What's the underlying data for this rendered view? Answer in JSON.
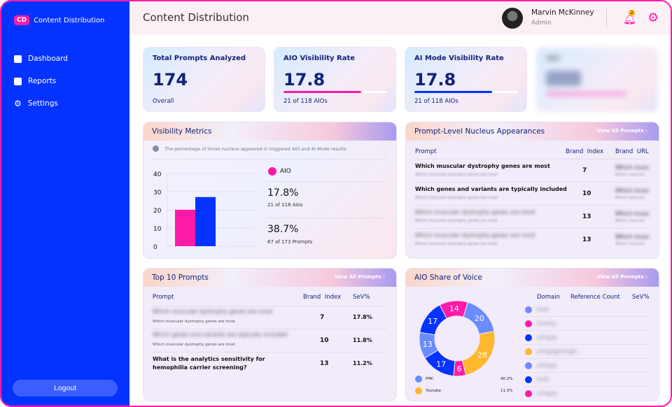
{
  "sidebar": {
    "logo_badge": "CD",
    "logo_text": "Content Distribution",
    "items": [
      {
        "label": "Dashboard",
        "icon": "dashboard-icon"
      },
      {
        "label": "Reports",
        "icon": "report-icon"
      },
      {
        "label": "Settings",
        "icon": "gear-icon"
      }
    ],
    "logout": "Logout"
  },
  "header": {
    "title": "Content Distribution",
    "user_name": "Marvin McKinney",
    "user_role": "Admin",
    "notification_count": "2"
  },
  "colors": {
    "brand_blue": "#0433ff",
    "brand_pink": "#ff1aa8",
    "yellow": "#ffb82e",
    "light_blue": "#6b8cff"
  },
  "stats": [
    {
      "title": "Total Prompts Analyzed",
      "value": "174",
      "sub": "Overall"
    },
    {
      "title": "AIO Visibility Rate",
      "value": "17.8",
      "sub": "21 of 118 AIOs",
      "progress": 0.75
    },
    {
      "title": "AI Mode Visibility Rate",
      "value": "17.8",
      "sub": "21 of 118 AIOs",
      "progress": 0.75
    }
  ],
  "visibility": {
    "title": "Visibility Metrics",
    "note": "The percentage of times nucleus appeared in triggered AIO and AI Mode results",
    "legend": "AIO",
    "m1_value": "17.8%",
    "m1_sub": "21 of 118 Aios",
    "m2_value": "38.7%",
    "m2_sub": "67 of 173 Prompts"
  },
  "chart_data": {
    "type": "bar",
    "yticks": [
      "0",
      "10",
      "20",
      "30",
      "40"
    ],
    "ylim": [
      0,
      40
    ],
    "values": [
      20,
      27
    ],
    "colors": [
      "#ff1aa8",
      "#0433ff"
    ]
  },
  "nucleus": {
    "title": "Prompt-Level Nucleus Appearances",
    "view_all": "View All Prompts",
    "headers": [
      "Prompt",
      "Brand  Index",
      "Brand  URL"
    ],
    "rows": [
      {
        "prompt": "Which muscular dystrophy genes are most",
        "sub": "Which muscular dystrophy genes are most",
        "index": "7",
        "url": "Which musc",
        "url_sub": "Which musculo"
      },
      {
        "prompt": "Which genes and variants are typically included",
        "sub": "Which muscular dystrophy genes are most",
        "index": "10",
        "url": "Which musc",
        "url_sub": "Which musculo"
      },
      {
        "prompt": "Which muscular dystrophy genes are most",
        "sub": "Which muscular dystrophy genes are most",
        "index": "13",
        "url": "Which musc",
        "url_sub": "Which musculo"
      },
      {
        "prompt": "Which muscular dystrophy genes are most",
        "sub": "Which muscular dystrophy genes are most",
        "index": "13",
        "url": "Which musc",
        "url_sub": "Which musculo"
      }
    ]
  },
  "top10": {
    "title": "Top 10 Prompts",
    "view_all": "View All Prompts",
    "headers": [
      "Prompt",
      "Brand  Index",
      "SeV%"
    ],
    "rows": [
      {
        "prompt": "Which muscular dystrophy genes are most",
        "sub": "Which muscular dystrophy genes are most",
        "index": "7",
        "sev": "17.8%"
      },
      {
        "prompt": "Which genes and variants are typically included",
        "sub": "Which muscular dystrophy genes are most",
        "index": "10",
        "sev": "11.8%"
      },
      {
        "prompt": "What is the analytics sensitivity for hemophilia carrier screening?",
        "sub": "",
        "index": "13",
        "sev": "11.2%"
      }
    ]
  },
  "sov": {
    "title": "AIO Share of Voice",
    "view_all": "View All Prompts",
    "headers": [
      "Domain",
      "Reference Count",
      "SeV%"
    ],
    "donut": [
      {
        "value": 14,
        "color": "#ff1aa8"
      },
      {
        "value": 20,
        "color": "#6b8cff"
      },
      {
        "value": 28,
        "color": "#ffb82e"
      },
      {
        "value": 6,
        "color": "#ff1aa8"
      },
      {
        "value": 17,
        "color": "#0433ff"
      },
      {
        "value": 13,
        "color": "#6b8cff"
      },
      {
        "value": 17,
        "color": "#0433ff"
      }
    ],
    "legend": [
      {
        "label": "PMC",
        "value": "40.2%",
        "color": "#6b8cff"
      },
      {
        "label": "Youtube",
        "value": "11.3%",
        "color": "#ffb82e"
      }
    ],
    "domains": [
      {
        "name": "lorel",
        "color": "#6b8cff"
      },
      {
        "name": "lorelity",
        "color": "#ff1aa8"
      },
      {
        "name": "zrhigzy",
        "color": "#0433ff"
      },
      {
        "name": "zrhigzgjhrngjh",
        "color": "#ffb82e"
      },
      {
        "name": "zrhigzy",
        "color": "#6b8cff"
      },
      {
        "name": "lorel",
        "color": "#0433ff"
      },
      {
        "name": "zrhigzy",
        "color": "#ff1aa8"
      }
    ]
  }
}
